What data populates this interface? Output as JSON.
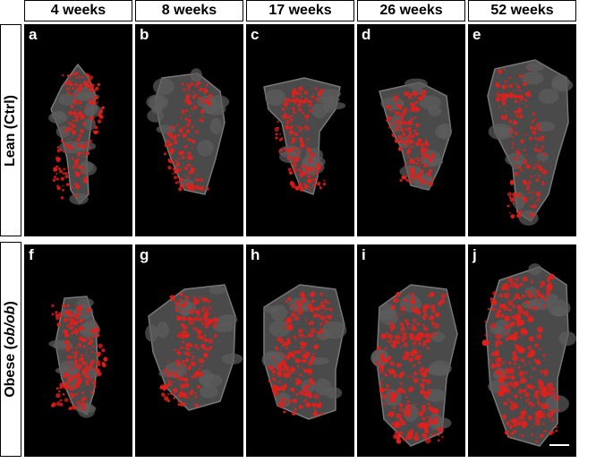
{
  "columns": [
    "4 weeks",
    "8 weeks",
    "17 weeks",
    "26 weeks",
    "52 weeks"
  ],
  "rows": [
    {
      "label_main": "Lean (Ctrl)",
      "label_italic": ""
    },
    {
      "label_main": "Obese (",
      "label_italic": "ob/ob",
      "label_tail": ")"
    }
  ],
  "panels": [
    {
      "label": "a",
      "shape": "tissue-lobe",
      "red_density": 0.35
    },
    {
      "label": "b",
      "shape": "tissue-lobe",
      "red_density": 0.3
    },
    {
      "label": "c",
      "shape": "tissue-lobe",
      "red_density": 0.35
    },
    {
      "label": "d",
      "shape": "tissue-lobe",
      "red_density": 0.35
    },
    {
      "label": "e",
      "shape": "tissue-lobe",
      "red_density": 0.35
    },
    {
      "label": "f",
      "shape": "tissue-lobe",
      "red_density": 0.45
    },
    {
      "label": "g",
      "shape": "tissue-lobe",
      "red_density": 0.45
    },
    {
      "label": "h",
      "shape": "tissue-lobe",
      "red_density": 0.55
    },
    {
      "label": "i",
      "shape": "tissue-lobe",
      "red_density": 0.7
    },
    {
      "label": "j",
      "shape": "tissue-lobe",
      "red_density": 0.8
    }
  ],
  "colors": {
    "tissue": "#4a4a4a",
    "tissue_edge": "#777777",
    "signal": "#e0201c",
    "background": "#000000"
  }
}
